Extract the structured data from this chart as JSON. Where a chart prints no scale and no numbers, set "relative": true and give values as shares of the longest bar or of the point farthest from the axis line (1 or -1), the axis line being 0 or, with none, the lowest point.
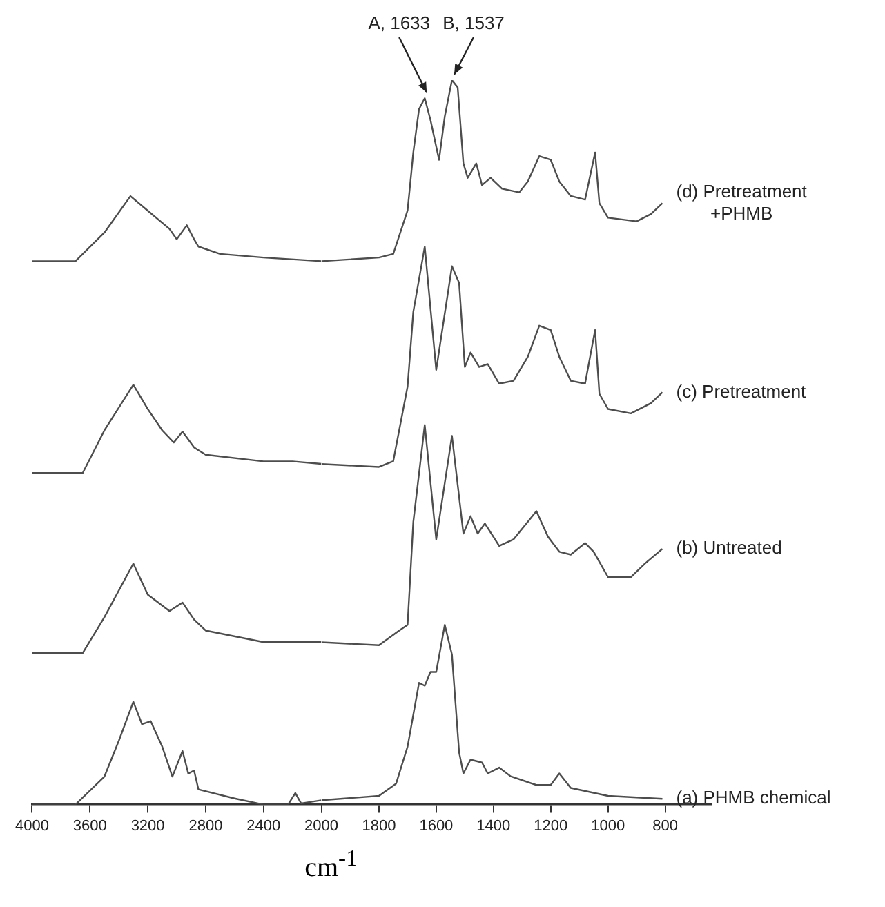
{
  "chart_data": [
    {
      "type": "line",
      "relative": true,
      "xlim": [
        4000,
        2000
      ],
      "xticks": [
        4000,
        3600,
        3200,
        2800,
        2400,
        2000
      ],
      "tick_labels": "x",
      "grid": false,
      "marker": "none",
      "line_style": "solid",
      "series": [
        {
          "color": "#4d4d4d",
          "x": [
            4000,
            3700,
            3500,
            3320,
            3200,
            3050,
            3000,
            2930,
            2880,
            2850,
            2700,
            2400,
            2000
          ],
          "values": [
            0.893,
            0.893,
            0.94,
            1.0,
            0.976,
            0.946,
            0.929,
            0.952,
            0.929,
            0.917,
            0.905,
            0.899,
            0.893
          ]
        },
        {
          "color": "#4d4d4d",
          "x": [
            4000,
            3650,
            3500,
            3300,
            3200,
            3100,
            3020,
            2960,
            2880,
            2800,
            2400,
            2200,
            2000
          ],
          "values": [
            0.545,
            0.545,
            0.615,
            0.69,
            0.65,
            0.615,
            0.595,
            0.613,
            0.587,
            0.575,
            0.564,
            0.564,
            0.56
          ]
        },
        {
          "color": "#4d4d4d",
          "x": [
            4000,
            3650,
            3500,
            3300,
            3200,
            3050,
            2960,
            2880,
            2800,
            2400,
            2200,
            2000
          ],
          "values": [
            0.249,
            0.249,
            0.308,
            0.396,
            0.345,
            0.318,
            0.332,
            0.304,
            0.286,
            0.267,
            0.267,
            0.267
          ]
        },
        {
          "color": "#4d4d4d",
          "x": [
            4000,
            3700,
            3500,
            3400,
            3300,
            3240,
            3180,
            3100,
            3030,
            2960,
            2920,
            2880,
            2850,
            2600,
            2400,
            2230,
            2180,
            2140,
            2000
          ],
          "values": [
            0,
            0,
            0.046,
            0.105,
            0.169,
            0.132,
            0.137,
            0.095,
            0.046,
            0.088,
            0.051,
            0.056,
            0.025,
            0.01,
            0,
            0,
            0.019,
            0.002,
            0.007
          ]
        }
      ]
    },
    {
      "type": "line",
      "relative": true,
      "xlabel": "cm$^{-1}$",
      "xlim": [
        2000,
        640
      ],
      "xticks": [
        {
          "value": 2000,
          "label": null
        },
        1800,
        1600,
        1400,
        1200,
        1000,
        800
      ],
      "tick_labels": "x",
      "grid": false,
      "legend": "right",
      "marker": "none",
      "line_style": "solid",
      "annotations": [
        {
          "text": "A, 1633",
          "x": 1633,
          "y": 0.975
        },
        {
          "text": "B, 1537",
          "x": 1537,
          "y": 1.0
        }
      ],
      "series": [
        {
          "name": "(d) Pretreatment +PHMB",
          "color": "#4d4d4d",
          "x": [
            2000,
            1800,
            1750,
            1700,
            1680,
            1660,
            1640,
            1620,
            1590,
            1570,
            1545,
            1525,
            1505,
            1490,
            1460,
            1440,
            1410,
            1370,
            1310,
            1280,
            1240,
            1200,
            1170,
            1130,
            1080,
            1045,
            1030,
            1000,
            900,
            850,
            810
          ],
          "values": [
            0.75,
            0.755,
            0.76,
            0.82,
            0.9,
            0.96,
            0.975,
            0.945,
            0.89,
            0.95,
            1.0,
            0.99,
            0.885,
            0.865,
            0.885,
            0.855,
            0.865,
            0.85,
            0.845,
            0.86,
            0.895,
            0.89,
            0.86,
            0.84,
            0.835,
            0.9,
            0.83,
            0.81,
            0.805,
            0.815,
            0.83
          ]
        },
        {
          "name": "(c) Pretreatment",
          "color": "#4d4d4d",
          "x": [
            2000,
            1800,
            1750,
            1700,
            1680,
            1640,
            1600,
            1545,
            1520,
            1500,
            1480,
            1450,
            1420,
            1380,
            1330,
            1280,
            1240,
            1200,
            1170,
            1130,
            1080,
            1045,
            1030,
            1000,
            920,
            850,
            810
          ],
          "values": [
            0.47,
            0.466,
            0.474,
            0.577,
            0.68,
            0.77,
            0.6,
            0.743,
            0.72,
            0.604,
            0.624,
            0.604,
            0.608,
            0.581,
            0.585,
            0.618,
            0.661,
            0.655,
            0.618,
            0.585,
            0.581,
            0.655,
            0.567,
            0.546,
            0.54,
            0.554,
            0.569
          ]
        },
        {
          "name": "(b) Untreated",
          "color": "#4d4d4d",
          "x": [
            2000,
            1800,
            1730,
            1700,
            1680,
            1640,
            1600,
            1545,
            1505,
            1480,
            1455,
            1430,
            1380,
            1330,
            1250,
            1210,
            1170,
            1130,
            1080,
            1050,
            1000,
            920,
            870,
            810
          ],
          "values": [
            0.224,
            0.22,
            0.24,
            0.248,
            0.39,
            0.524,
            0.366,
            0.509,
            0.374,
            0.398,
            0.374,
            0.388,
            0.357,
            0.366,
            0.405,
            0.37,
            0.349,
            0.345,
            0.361,
            0.349,
            0.314,
            0.314,
            0.333,
            0.353
          ]
        },
        {
          "name": "(a) PHMB chemical",
          "color": "#4d4d4d",
          "x": [
            2000,
            1800,
            1740,
            1700,
            1660,
            1640,
            1620,
            1600,
            1570,
            1545,
            1520,
            1505,
            1480,
            1440,
            1420,
            1380,
            1340,
            1250,
            1200,
            1170,
            1130,
            1000,
            810
          ],
          "values": [
            0.006,
            0.012,
            0.029,
            0.08,
            0.168,
            0.164,
            0.183,
            0.183,
            0.248,
            0.207,
            0.072,
            0.043,
            0.062,
            0.058,
            0.043,
            0.051,
            0.039,
            0.027,
            0.027,
            0.043,
            0.023,
            0.012,
            0.008
          ]
        }
      ]
    }
  ]
}
